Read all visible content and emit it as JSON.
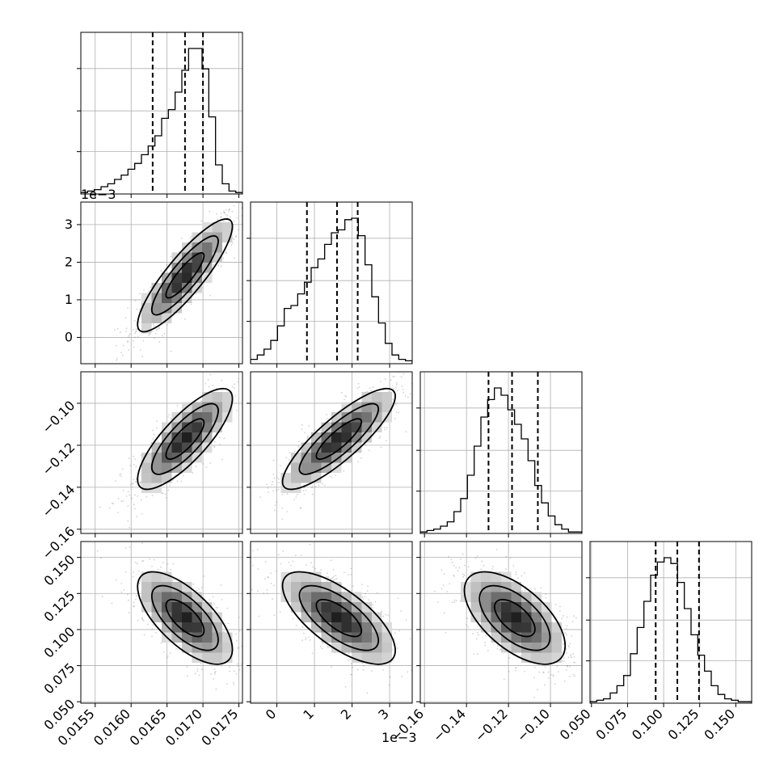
{
  "chart_data": {
    "type": "corner",
    "title": "",
    "parameters": [
      {
        "range": [
          0.0153,
          0.01755
        ],
        "ticks": [
          "0.0155",
          "0.0160",
          "0.0165",
          "0.0170",
          "0.0175"
        ],
        "tick_values": [
          0.0155,
          0.016,
          0.0165,
          0.017,
          0.0175
        ],
        "offset_text": "",
        "quantiles": [
          0.0163,
          0.01675,
          0.017
        ]
      },
      {
        "range": [
          -0.0007,
          0.0036
        ],
        "ticks": [
          "0",
          "1",
          "2",
          "3"
        ],
        "tick_values": [
          0,
          0.001,
          0.002,
          0.003
        ],
        "offset_text": "1e−3",
        "quantiles": [
          0.0008,
          0.0016,
          0.00215
        ]
      },
      {
        "range": [
          -0.162,
          -0.085
        ],
        "ticks": [
          "−0.16",
          "−0.14",
          "−0.12",
          "−0.10"
        ],
        "tick_values": [
          -0.16,
          -0.14,
          -0.12,
          -0.1
        ],
        "offset_text": "",
        "quantiles": [
          -0.1295,
          -0.1183,
          -0.106
        ]
      },
      {
        "range": [
          0.049,
          0.161
        ],
        "ticks": [
          "0.050",
          "0.075",
          "0.100",
          "0.125",
          "0.150"
        ],
        "tick_values": [
          0.05,
          0.075,
          0.1,
          0.125,
          0.15
        ],
        "offset_text": "",
        "quantiles": [
          0.0945,
          0.1095,
          0.1245
        ]
      }
    ],
    "histograms": [
      [
        1,
        2,
        3,
        5,
        7,
        10,
        13,
        17,
        21,
        27,
        33,
        40,
        52,
        58,
        70,
        85,
        100,
        100,
        86,
        53,
        20,
        7,
        2,
        1
      ],
      [
        3,
        6,
        10,
        16,
        26,
        38,
        40,
        48,
        56,
        66,
        72,
        82,
        90,
        92,
        99,
        100,
        88,
        68,
        46,
        28,
        14,
        6,
        3,
        2
      ],
      [
        1,
        2,
        3,
        5,
        8,
        15,
        24,
        40,
        60,
        80,
        92,
        100,
        95,
        85,
        75,
        65,
        50,
        33,
        21,
        12,
        6,
        3,
        1,
        1
      ],
      [
        1,
        2,
        3,
        7,
        12,
        19,
        34,
        52,
        70,
        88,
        97,
        100,
        96,
        83,
        65,
        47,
        33,
        22,
        12,
        6,
        3,
        2,
        1,
        1
      ]
    ],
    "pairs": [
      {
        "row": 1,
        "col": 0,
        "mean": [
          0.01675,
          0.00165
        ],
        "sd": [
          0.00033,
          0.00075
        ],
        "rho": 0.87
      },
      {
        "row": 2,
        "col": 0,
        "mean": [
          0.01675,
          -0.117
        ],
        "sd": [
          0.00033,
          0.012
        ],
        "rho": 0.8
      },
      {
        "row": 2,
        "col": 1,
        "mean": [
          0.00165,
          -0.117
        ],
        "sd": [
          0.00075,
          0.012
        ],
        "rho": 0.85
      },
      {
        "row": 3,
        "col": 0,
        "mean": [
          0.01675,
          0.108
        ],
        "sd": [
          0.00033,
          0.016
        ],
        "rho": -0.68
      },
      {
        "row": 3,
        "col": 1,
        "mean": [
          0.00165,
          0.108
        ],
        "sd": [
          0.00075,
          0.016
        ],
        "rho": -0.7
      },
      {
        "row": 3,
        "col": 2,
        "mean": [
          -0.117,
          0.108
        ],
        "sd": [
          0.012,
          0.016
        ],
        "rho": -0.6
      }
    ],
    "grid": true,
    "colors": {
      "line": "#000000",
      "grid": "#b0b0b0",
      "points": "#7f7f7f"
    }
  }
}
